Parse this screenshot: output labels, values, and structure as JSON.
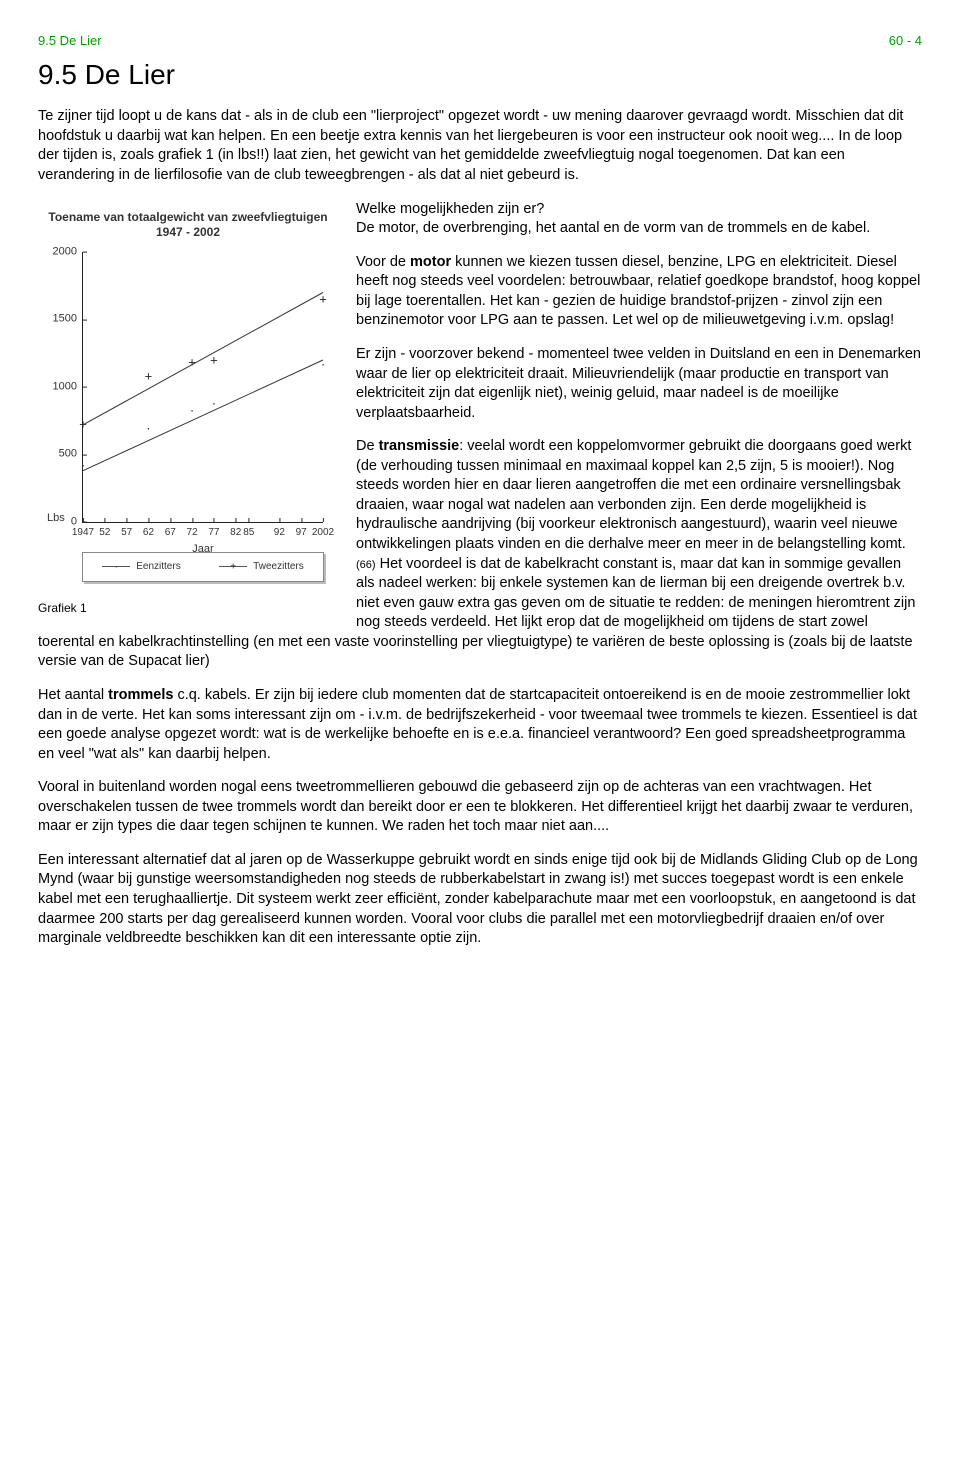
{
  "header": {
    "left": "9.5 De Lier",
    "right": "60 - 4"
  },
  "title": "9.5 De Lier",
  "intro": "Te zijner tijd loopt u de kans dat - als in de club een \"lierproject\" opgezet wordt - uw mening daarover gevraagd wordt. Misschien dat dit hoofdstuk u daarbij wat kan helpen. En een beetje extra kennis van het liergebeuren is voor een instructeur ook nooit weg.... In de loop der tijden is, zoals grafiek 1 (in lbs!!) laat zien, het gewicht van het gemiddelde zweefvliegtuig nogal toegenomen. Dat kan een verandering in de lierfilosofie van de club teweegbrengen - als dat al niet gebeurd is.",
  "chart": {
    "type": "line",
    "title_line1": "Toename van totaalgewicht van zweefvliegtuigen",
    "title_line2": "1947 - 2002",
    "x_label": "Jaar",
    "y_unit": "Lbs",
    "x_ticks": [
      "1947",
      "52",
      "57",
      "62",
      "67",
      "72",
      "77",
      "82",
      "85",
      "92",
      "97",
      "2002"
    ],
    "y_ticks": [
      0,
      500,
      1000,
      1500,
      2000
    ],
    "ylim": [
      0,
      2000
    ],
    "series": [
      {
        "name": "Eenzitters",
        "marker": "·",
        "points": [
          {
            "x": 1947,
            "y": 420
          },
          {
            "x": 1962,
            "y": 690
          },
          {
            "x": 1972,
            "y": 830
          },
          {
            "x": 1977,
            "y": 880
          },
          {
            "x": 2002,
            "y": 1170
          }
        ]
      },
      {
        "name": "Tweezitters",
        "marker": "+",
        "points": [
          {
            "x": 1947,
            "y": 720
          },
          {
            "x": 1962,
            "y": 1080
          },
          {
            "x": 1972,
            "y": 1180
          },
          {
            "x": 1977,
            "y": 1200
          },
          {
            "x": 2002,
            "y": 1650
          }
        ]
      }
    ],
    "trend_lines": [
      {
        "x1": 1947,
        "y1": 380,
        "x2": 2002,
        "y2": 1200
      },
      {
        "x1": 1947,
        "y1": 720,
        "x2": 2002,
        "y2": 1700
      }
    ],
    "line_color": "#333333",
    "background_color": "#ffffff",
    "caption": "Grafiek 1"
  },
  "para": {
    "p2a": "Welke mogelijkheden zijn er?",
    "p2b": "De motor, de overbrenging, het aantal en de vorm van de trommels en de kabel.",
    "p3_lead": "Voor de ",
    "p3_bold": "motor",
    "p3_rest": " kunnen we kiezen tussen diesel, benzine, LPG en elektriciteit. Diesel heeft nog steeds veel voordelen: betrouwbaar, relatief goedkope brandstof, hoog koppel bij lage toerentallen. Het kan - gezien de huidige brandstof-prijzen - zinvol zijn een benzinemotor voor LPG aan te passen. Let wel op de milieuwetgeving i.v.m. opslag!",
    "p4": "Er zijn - voorzover bekend - momenteel twee velden in Duitsland en een in Denemarken waar de lier op elektriciteit draait. Milieuvriendelijk (maar productie en transport van elektriciteit zijn dat eigenlijk niet), weinig geluid, maar nadeel is de moeilijke verplaatsbaarheid.",
    "p5_lead": "De ",
    "p5_bold": "transmissie",
    "p5_rest1": ": veelal wordt een koppelomvormer gebruikt die doorgaans goed werkt (de verhouding tussen minimaal en maximaal koppel kan 2,5 zijn, 5 is mooier!). Nog steeds worden hier en daar lieren aangetroffen die met een ordinaire versnellingsbak draaien, waar nogal wat nadelen aan verbonden zijn. Een derde mogelijkheid is hydraulische aandrijving (bij voorkeur elektronisch aangestuurd), waarin veel nieuwe ontwikkelingen plaats vinden en die derhalve meer en meer in de belangstelling komt.",
    "p5_ref": "(66)",
    "p5_rest2": " Het voordeel is dat de kabelkracht constant is, maar dat kan in sommige gevallen als nadeel werken: bij enkele systemen kan de lierman bij een dreigende overtrek b.v. niet even gauw extra gas geven om de situatie te redden: de meningen hieromtrent zijn nog steeds verdeeld. Het lijkt erop dat de mogelijkheid om tijdens de start zowel toerental en kabelkrachtinstelling (en met een vaste voorinstelling per vliegtuigtype) te variëren de beste oplossing is (zoals bij de laatste versie van de Supacat lier)",
    "p6_lead": "Het aantal ",
    "p6_bold": "trommels",
    "p6_rest": " c.q. kabels. Er zijn bij iedere club momenten dat de startcapaciteit ontoereikend is en de mooie zestrommellier lokt dan in de verte. Het kan soms interessant zijn om - i.v.m. de bedrijfszekerheid - voor tweemaal twee trommels te kiezen. Essentieel is dat een goede analyse opgezet wordt: wat is de werkelijke behoefte en is e.e.a. financieel verantwoord? Een goed spreadsheetprogramma en veel \"wat als\" kan daarbij helpen.",
    "p7": "Vooral in buitenland worden nogal eens tweetrommellieren gebouwd die gebaseerd zijn op de achteras van een vrachtwagen. Het overschakelen tussen de twee trommels wordt dan bereikt door er een te blokkeren. Het differentieel krijgt het daarbij zwaar te verduren, maar er zijn types die daar tegen schijnen te kunnen. We raden het toch maar niet aan....",
    "p8": "Een interessant alternatief dat al jaren op de Wasserkuppe gebruikt wordt en sinds enige tijd ook bij de Midlands Gliding Club op de Long Mynd (waar bij gunstige weersomstandigheden nog steeds de rubberkabelstart in zwang is!) met succes toegepast wordt is een enkele kabel met een terughaalliertje. Dit systeem werkt zeer efficiënt, zonder kabelparachute maar met een voorloopstuk, en aangetoond is dat daarmee 200 starts per dag gerealiseerd kunnen worden. Vooral voor clubs die parallel met een motorvliegbedrijf draaien en/of over marginale veldbreedte beschikken kan dit een interessante optie zijn."
  }
}
